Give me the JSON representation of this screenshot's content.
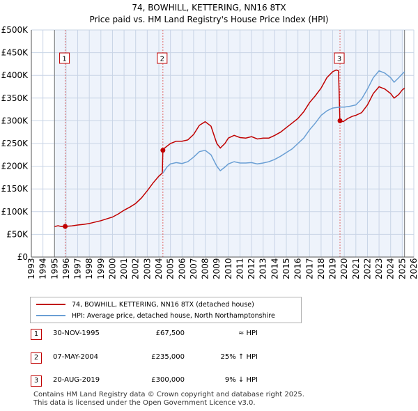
{
  "title_line1": "74, BOWHILL, KETTERING, NN16 8TX",
  "title_line2": "Price paid vs. HM Land Registry's House Price Index (HPI)",
  "chart_data": {
    "type": "line",
    "title": "74, BOWHILL, KETTERING, NN16 8TX — Price paid vs. HM Land Registry's House Price Index (HPI)",
    "xlim": [
      1993,
      2026
    ],
    "ylim": [
      0,
      500000
    ],
    "x_ticks": [
      1993,
      1994,
      1995,
      1996,
      1997,
      1998,
      1999,
      2000,
      2001,
      2002,
      2003,
      2004,
      2005,
      2006,
      2007,
      2008,
      2009,
      2010,
      2011,
      2012,
      2013,
      2014,
      2015,
      2016,
      2017,
      2018,
      2019,
      2020,
      2021,
      2022,
      2023,
      2024,
      2025,
      2026
    ],
    "y_ticks": [
      {
        "value": 0,
        "label": "£0"
      },
      {
        "value": 50000,
        "label": "£50K"
      },
      {
        "value": 100000,
        "label": "£100K"
      },
      {
        "value": 150000,
        "label": "£150K"
      },
      {
        "value": 200000,
        "label": "£200K"
      },
      {
        "value": 250000,
        "label": "£250K"
      },
      {
        "value": 300000,
        "label": "£300K"
      },
      {
        "value": 350000,
        "label": "£350K"
      },
      {
        "value": 400000,
        "label": "£400K"
      },
      {
        "value": 450000,
        "label": "£450K"
      },
      {
        "value": 500000,
        "label": "£500K"
      }
    ],
    "grid": true,
    "shaded_regions": [
      [
        1993,
        1995.0
      ],
      [
        2025.2,
        2026
      ]
    ],
    "series": [
      {
        "name": "74, BOWHILL, KETTERING, NN16 8TX (detached house)",
        "color": "#c00000",
        "points": [
          [
            1995.0,
            67000
          ],
          [
            1995.3,
            69000
          ],
          [
            1995.6,
            67000
          ],
          [
            1995.92,
            67500
          ],
          [
            1996.5,
            68500
          ],
          [
            1997.0,
            70500
          ],
          [
            1997.5,
            72000
          ],
          [
            1998.0,
            74000
          ],
          [
            1998.5,
            77000
          ],
          [
            1999.0,
            80000
          ],
          [
            1999.5,
            84000
          ],
          [
            2000.0,
            88000
          ],
          [
            2000.5,
            95000
          ],
          [
            2001.0,
            103000
          ],
          [
            2001.5,
            110000
          ],
          [
            2002.0,
            118000
          ],
          [
            2002.5,
            130000
          ],
          [
            2003.0,
            146000
          ],
          [
            2003.5,
            163000
          ],
          [
            2004.0,
            178000
          ],
          [
            2004.3,
            185000
          ],
          [
            2004.35,
            235000
          ],
          [
            2004.5,
            240000
          ],
          [
            2005.0,
            250000
          ],
          [
            2005.5,
            255000
          ],
          [
            2006.0,
            255000
          ],
          [
            2006.5,
            258000
          ],
          [
            2007.0,
            270000
          ],
          [
            2007.5,
            290000
          ],
          [
            2008.0,
            298000
          ],
          [
            2008.5,
            288000
          ],
          [
            2009.0,
            250000
          ],
          [
            2009.3,
            240000
          ],
          [
            2009.7,
            250000
          ],
          [
            2010.0,
            262000
          ],
          [
            2010.5,
            268000
          ],
          [
            2011.0,
            263000
          ],
          [
            2011.5,
            262000
          ],
          [
            2012.0,
            265000
          ],
          [
            2012.5,
            260000
          ],
          [
            2013.0,
            262000
          ],
          [
            2013.5,
            262000
          ],
          [
            2014.0,
            268000
          ],
          [
            2014.5,
            275000
          ],
          [
            2015.0,
            285000
          ],
          [
            2015.5,
            295000
          ],
          [
            2016.0,
            305000
          ],
          [
            2016.5,
            320000
          ],
          [
            2017.0,
            340000
          ],
          [
            2017.5,
            355000
          ],
          [
            2018.0,
            372000
          ],
          [
            2018.5,
            395000
          ],
          [
            2019.0,
            408000
          ],
          [
            2019.3,
            412000
          ],
          [
            2019.5,
            410000
          ],
          [
            2019.62,
            300000
          ],
          [
            2019.9,
            298000
          ],
          [
            2020.3,
            305000
          ],
          [
            2020.7,
            310000
          ],
          [
            2021.0,
            312000
          ],
          [
            2021.5,
            318000
          ],
          [
            2022.0,
            335000
          ],
          [
            2022.5,
            360000
          ],
          [
            2023.0,
            375000
          ],
          [
            2023.5,
            370000
          ],
          [
            2024.0,
            360000
          ],
          [
            2024.3,
            350000
          ],
          [
            2024.7,
            358000
          ],
          [
            2025.0,
            368000
          ],
          [
            2025.2,
            372000
          ]
        ]
      },
      {
        "name": "HPI: Average price, detached house, North Northamptonshire",
        "color": "#6a9fd4",
        "points": [
          [
            2004.35,
            185000
          ],
          [
            2004.7,
            198000
          ],
          [
            2005.0,
            205000
          ],
          [
            2005.5,
            208000
          ],
          [
            2006.0,
            206000
          ],
          [
            2006.5,
            210000
          ],
          [
            2007.0,
            220000
          ],
          [
            2007.5,
            232000
          ],
          [
            2008.0,
            235000
          ],
          [
            2008.5,
            225000
          ],
          [
            2009.0,
            200000
          ],
          [
            2009.3,
            190000
          ],
          [
            2009.7,
            198000
          ],
          [
            2010.0,
            205000
          ],
          [
            2010.5,
            210000
          ],
          [
            2011.0,
            207000
          ],
          [
            2011.5,
            207000
          ],
          [
            2012.0,
            208000
          ],
          [
            2012.5,
            205000
          ],
          [
            2013.0,
            207000
          ],
          [
            2013.5,
            210000
          ],
          [
            2014.0,
            215000
          ],
          [
            2014.5,
            222000
          ],
          [
            2015.0,
            230000
          ],
          [
            2015.5,
            238000
          ],
          [
            2016.0,
            250000
          ],
          [
            2016.5,
            262000
          ],
          [
            2017.0,
            280000
          ],
          [
            2017.5,
            295000
          ],
          [
            2018.0,
            312000
          ],
          [
            2018.5,
            322000
          ],
          [
            2019.0,
            328000
          ],
          [
            2019.62,
            330000
          ],
          [
            2020.0,
            330000
          ],
          [
            2020.5,
            332000
          ],
          [
            2021.0,
            335000
          ],
          [
            2021.5,
            348000
          ],
          [
            2022.0,
            370000
          ],
          [
            2022.5,
            395000
          ],
          [
            2023.0,
            410000
          ],
          [
            2023.5,
            405000
          ],
          [
            2024.0,
            395000
          ],
          [
            2024.3,
            385000
          ],
          [
            2024.7,
            395000
          ],
          [
            2025.0,
            403000
          ],
          [
            2025.2,
            408000
          ]
        ]
      }
    ],
    "sales": [
      {
        "label": "1",
        "x": 1995.92,
        "value": 67500
      },
      {
        "label": "2",
        "x": 2004.35,
        "value": 235000
      },
      {
        "label": "3",
        "x": 2019.63,
        "value": 300000
      }
    ]
  },
  "legend": {
    "items": [
      {
        "label": "74, BOWHILL, KETTERING, NN16 8TX (detached house)",
        "color": "#c00000"
      },
      {
        "label": "HPI: Average price, detached house, North Northamptonshire",
        "color": "#6a9fd4"
      }
    ]
  },
  "transactions": [
    {
      "num": "1",
      "date": "30-NOV-1995",
      "price": "£67,500",
      "hpi": "≈ HPI"
    },
    {
      "num": "2",
      "date": "07-MAY-2004",
      "price": "£235,000",
      "hpi": "25% ↑ HPI"
    },
    {
      "num": "3",
      "date": "20-AUG-2019",
      "price": "£300,000",
      "hpi": "9% ↓ HPI"
    }
  ],
  "footer": {
    "line1": "Contains HM Land Registry data © Crown copyright and database right 2025.",
    "line2": "This data is licensed under the Open Government Licence v3.0."
  }
}
